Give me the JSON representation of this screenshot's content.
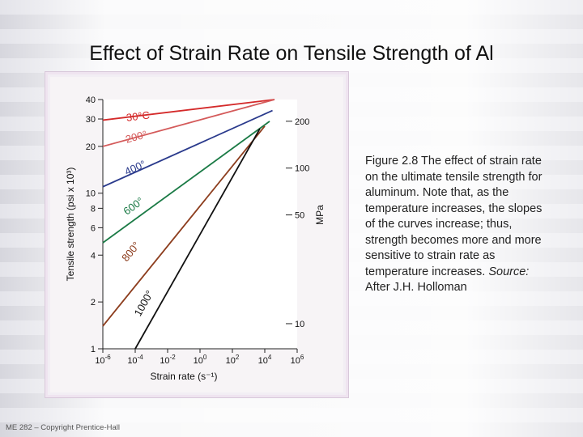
{
  "slide": {
    "title": "Effect of Strain Rate on Tensile Strength of Al",
    "caption": "Figure 2.8 The effect of strain rate on the ultimate tensile strength for aluminum.  Note that, as the temperature increases, the slopes of the curves increase; thus, strength becomes more and more sensitive to strain rate as temperature increases.",
    "source_label": "Source:",
    "source_text": "After J.H. Holloman",
    "footer": "ME 282 – Copyright Prentice-Hall"
  },
  "colors": {
    "30C": "#d42a2a",
    "200": "#d45a5a",
    "400": "#2a3a8c",
    "600": "#1a7a45",
    "800": "#8b3a1a",
    "1000": "#111111"
  },
  "chart_data": {
    "type": "line",
    "x_scale": "log",
    "y_scale": "log",
    "xlim": [
      1e-06,
      1000000
    ],
    "ylim_left": [
      1,
      40
    ],
    "ylim_right_mpa": [
      6.9,
      276
    ],
    "xlabel": "Strain rate (s⁻¹)",
    "ylabel_left": "Tensile strength (psi x 10³)",
    "ylabel_right": "MPa",
    "x_ticks": [
      {
        "value": 1e-06,
        "base": "10",
        "exp": "-6"
      },
      {
        "value": 0.0001,
        "base": "10",
        "exp": "-4"
      },
      {
        "value": 0.01,
        "base": "10",
        "exp": "-2"
      },
      {
        "value": 1,
        "base": "10",
        "exp": "0"
      },
      {
        "value": 100,
        "base": "10",
        "exp": "2"
      },
      {
        "value": 10000,
        "base": "10",
        "exp": "4"
      },
      {
        "value": 1000000,
        "base": "10",
        "exp": "6"
      }
    ],
    "y_ticks_left": [
      "1",
      "2",
      "4",
      "6",
      "8",
      "10",
      "20",
      "30",
      "40"
    ],
    "y_ticks_left_values": [
      1,
      2,
      4,
      6,
      8,
      10,
      20,
      30,
      40
    ],
    "y_ticks_right": [
      "10",
      "50",
      "100",
      "200"
    ],
    "y_ticks_right_values": [
      10,
      50,
      100,
      200
    ],
    "series": [
      {
        "name": "30°C",
        "color_key": "30C",
        "points": [
          [
            1e-06,
            29.5
          ],
          [
            40000,
            40
          ]
        ]
      },
      {
        "name": "200°",
        "color_key": "200",
        "points": [
          [
            1e-06,
            20
          ],
          [
            40000,
            40
          ]
        ]
      },
      {
        "name": "400°",
        "color_key": "400",
        "points": [
          [
            1e-06,
            11
          ],
          [
            30000,
            34
          ]
        ]
      },
      {
        "name": "600°",
        "color_key": "600",
        "points": [
          [
            1e-06,
            4.8
          ],
          [
            20000,
            29
          ]
        ]
      },
      {
        "name": "800°",
        "color_key": "800",
        "points": [
          [
            1e-06,
            1.4
          ],
          [
            10000,
            27
          ]
        ]
      },
      {
        "name": "1000°",
        "color_key": "1000",
        "points": [
          [
            0.0001,
            1
          ],
          [
            5000,
            26
          ]
        ]
      }
    ],
    "series_label_pos": [
      {
        "x": 3e-05,
        "y": 29
      },
      {
        "x": 3e-05,
        "y": 21
      },
      {
        "x": 3e-05,
        "y": 13
      },
      {
        "x": 3e-05,
        "y": 7.2
      },
      {
        "x": 3e-05,
        "y": 3.6
      },
      {
        "x": 0.0002,
        "y": 1.6
      }
    ]
  }
}
